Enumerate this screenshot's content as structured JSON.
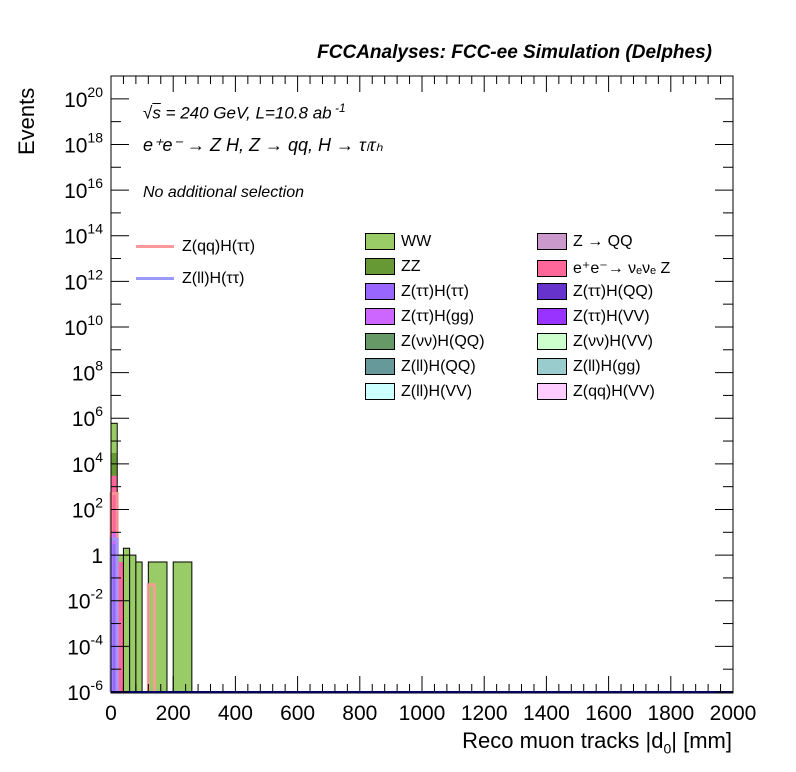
{
  "header": {
    "title": "FCCAnalyses: FCC-ee Simulation (Delphes)"
  },
  "annotations": {
    "sqrt": "s",
    "energy": " = 240 GeV, L=10.8 ab",
    "lumi_exp": " -1",
    "process": "e⁺e⁻ → Z H, Z → qq, H → τₗτₕ",
    "selection": "No additional selection"
  },
  "chart_data": {
    "type": "bar",
    "xlabel": "Reco muon tracks |d",
    "xlabel_sub": "0",
    "xlabel_suffix": "| [mm]",
    "ylabel": "Events",
    "xlim": [
      0,
      2000
    ],
    "ylim": [
      1e-06,
      1e+21
    ],
    "yscale": "log",
    "grid": false,
    "x_ticks": [
      "0",
      "200",
      "400",
      "600",
      "800",
      "1000",
      "1200",
      "1400",
      "1600",
      "1800",
      "2000"
    ],
    "y_ticks": [
      {
        "base": "10",
        "exp": "-6",
        "value": 1e-06
      },
      {
        "base": "10",
        "exp": "-4",
        "value": 0.0001
      },
      {
        "base": "10",
        "exp": "-2",
        "value": 0.01
      },
      {
        "base": "1",
        "exp": "",
        "value": 1
      },
      {
        "base": "10",
        "exp": "2",
        "value": 100.0
      },
      {
        "base": "10",
        "exp": "4",
        "value": 10000.0
      },
      {
        "base": "10",
        "exp": "6",
        "value": 1000000.0
      },
      {
        "base": "10",
        "exp": "8",
        "value": 100000000.0
      },
      {
        "base": "10",
        "exp": "10",
        "value": 10000000000.0
      },
      {
        "base": "10",
        "exp": "12",
        "value": 1000000000000.0
      },
      {
        "base": "10",
        "exp": "14",
        "value": 100000000000000.0
      },
      {
        "base": "10",
        "exp": "16",
        "value": 1e+16
      },
      {
        "base": "10",
        "exp": "18",
        "value": 1e+18
      },
      {
        "base": "10",
        "exp": "20",
        "value": 1e+20
      }
    ],
    "stack_bins": [
      {
        "x0": 0,
        "x1": 20,
        "value": 600000,
        "layers": [
          {
            "name": "Z(ττ)H(ττ)",
            "value": 3,
            "color": "#9966ff"
          },
          {
            "name": "Z(ττ)H(gg)",
            "value": 10,
            "color": "#cc66ff"
          },
          {
            "name": "e⁺e⁻→ νₑνₑ Z",
            "value": 3000,
            "color": "#ff6699"
          },
          {
            "name": "ZZ",
            "value": 30000,
            "color": "#669933"
          },
          {
            "name": "WW",
            "value": 600000,
            "color": "#99cc66"
          }
        ]
      },
      {
        "x0": 20,
        "x1": 40,
        "value": 1,
        "layers": [
          {
            "name": "e⁺e⁻→ νₑνₑ Z",
            "value": 0.5,
            "color": "#ff6699"
          },
          {
            "name": "WW",
            "value": 1,
            "color": "#99cc66"
          }
        ]
      },
      {
        "x0": 40,
        "x1": 60,
        "value": 2,
        "layers": [
          {
            "name": "WW",
            "value": 2,
            "color": "#99cc66"
          }
        ]
      },
      {
        "x0": 60,
        "x1": 80,
        "value": 1,
        "layers": [
          {
            "name": "WW",
            "value": 1,
            "color": "#99cc66"
          }
        ]
      },
      {
        "x0": 80,
        "x1": 100,
        "value": 0.5,
        "layers": [
          {
            "name": "WW",
            "value": 0.5,
            "color": "#99cc66"
          }
        ]
      },
      {
        "x0": 120,
        "x1": 180,
        "value": 0.5,
        "layers": [
          {
            "name": "WW",
            "value": 0.5,
            "color": "#99cc66"
          }
        ]
      },
      {
        "x0": 200,
        "x1": 260,
        "value": 0.5,
        "layers": [
          {
            "name": "WW",
            "value": 0.5,
            "color": "#99cc66"
          }
        ]
      }
    ],
    "overlay_bins": [
      {
        "series": "Z(qq)H(ττ)",
        "x0": 0,
        "x1": 20,
        "value": 500,
        "color": "#ff9999"
      },
      {
        "series": "Z(qq)H(ττ)",
        "x0": 120,
        "x1": 140,
        "value": 0.05,
        "color": "#ff9999"
      },
      {
        "series": "Z(ll)H(ττ)",
        "x0": 0,
        "x1": 20,
        "value": 5,
        "color": "#9999ff"
      }
    ],
    "legend_lines": [
      {
        "name": "Z(qq)H(ττ)",
        "color": "#ff9999"
      },
      {
        "name": "Z(ll)H(ττ)",
        "color": "#9999ff"
      }
    ],
    "legend": [
      {
        "name": "WW",
        "color": "#99cc66"
      },
      {
        "name": "Z → QQ",
        "color": "#cc99cc"
      },
      {
        "name": "ZZ",
        "color": "#669933"
      },
      {
        "name": "e⁺e⁻→ νₑνₑ Z",
        "color": "#ff6699"
      },
      {
        "name": "Z(ττ)H(ττ)",
        "color": "#9966ff"
      },
      {
        "name": "Z(ττ)H(QQ)",
        "color": "#6633cc"
      },
      {
        "name": "Z(ττ)H(gg)",
        "color": "#cc66ff"
      },
      {
        "name": "Z(ττ)H(VV)",
        "color": "#9933ff"
      },
      {
        "name": "Z(νν)H(QQ)",
        "color": "#669966"
      },
      {
        "name": "Z(νν)H(VV)",
        "color": "#ccffcc"
      },
      {
        "name": "Z(ll)H(QQ)",
        "color": "#669999"
      },
      {
        "name": "Z(ll)H(gg)",
        "color": "#99cccc"
      },
      {
        "name": "Z(ll)H(VV)",
        "color": "#ccffff"
      },
      {
        "name": "Z(qq)H(VV)",
        "color": "#ffccff"
      }
    ],
    "legend_placement": "top-right"
  }
}
